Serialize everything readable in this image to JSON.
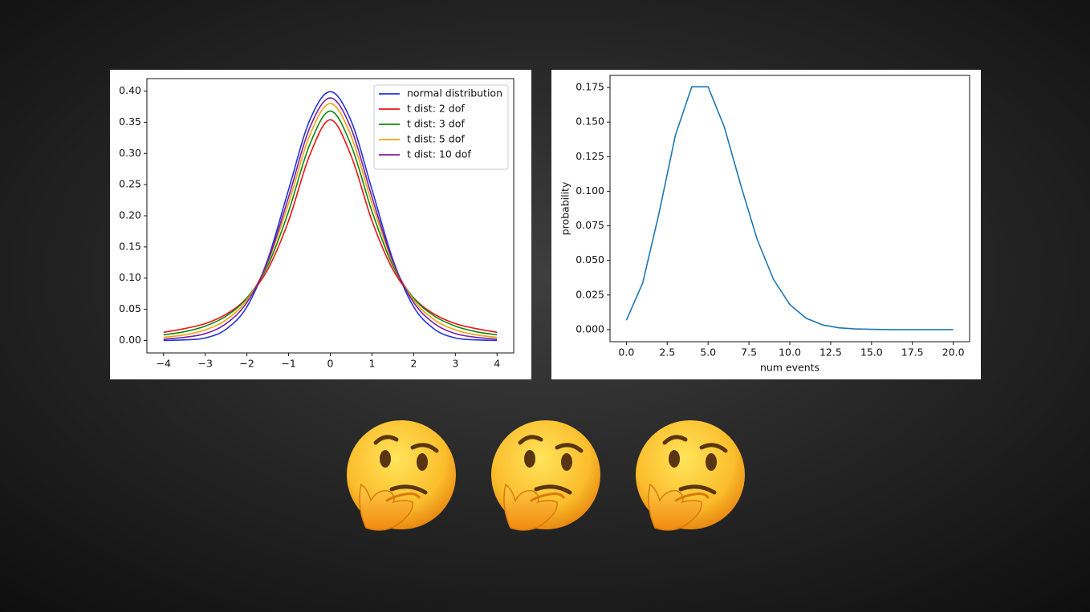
{
  "chart_data": [
    {
      "type": "line",
      "x": [
        -4,
        -3.5,
        -3,
        -2.5,
        -2,
        -1.5,
        -1,
        -0.5,
        0,
        0.5,
        1,
        1.5,
        2,
        2.5,
        3,
        3.5,
        4
      ],
      "series": [
        {
          "name": "normal distribution",
          "color": "#2233dd",
          "values": [
            0.0,
            0.001,
            0.004,
            0.018,
            0.054,
            0.13,
            0.242,
            0.352,
            0.399,
            0.352,
            0.242,
            0.13,
            0.054,
            0.018,
            0.004,
            0.001,
            0.0
          ]
        },
        {
          "name": "t dist: 2 dof",
          "color": "#ee1111",
          "values": [
            0.013,
            0.019,
            0.027,
            0.042,
            0.068,
            0.114,
            0.192,
            0.296,
            0.354,
            0.296,
            0.192,
            0.114,
            0.068,
            0.042,
            0.027,
            0.019,
            0.013
          ]
        },
        {
          "name": "t dist: 3 dof",
          "color": "#118811",
          "values": [
            0.009,
            0.014,
            0.023,
            0.039,
            0.068,
            0.12,
            0.207,
            0.313,
            0.368,
            0.313,
            0.207,
            0.12,
            0.068,
            0.039,
            0.023,
            0.014,
            0.009
          ]
        },
        {
          "name": "t dist: 5 dof",
          "color": "#f2a20c",
          "values": [
            0.005,
            0.009,
            0.017,
            0.033,
            0.065,
            0.125,
            0.22,
            0.328,
            0.38,
            0.328,
            0.22,
            0.125,
            0.065,
            0.033,
            0.017,
            0.009,
            0.005
          ]
        },
        {
          "name": "t dist: 10 dof",
          "color": "#7a1fa2",
          "values": [
            0.002,
            0.005,
            0.011,
            0.027,
            0.061,
            0.127,
            0.23,
            0.34,
            0.389,
            0.34,
            0.23,
            0.127,
            0.061,
            0.027,
            0.011,
            0.005,
            0.002
          ]
        }
      ],
      "xlim": [
        -4.4,
        4.4
      ],
      "xticks": [
        {
          "value": -4,
          "label": "−4"
        },
        {
          "value": -3,
          "label": "−3"
        },
        {
          "value": -2,
          "label": "−2"
        },
        {
          "value": -1,
          "label": "−1"
        },
        0,
        1,
        2,
        3,
        4
      ],
      "ylim": [
        -0.02,
        0.42
      ],
      "yticks": [
        {
          "value": 0,
          "label": "0.00"
        },
        {
          "value": 0.05,
          "label": "0.05"
        },
        {
          "value": 0.1,
          "label": "0.10"
        },
        {
          "value": 0.15,
          "label": "0.15"
        },
        {
          "value": 0.2,
          "label": "0.20"
        },
        {
          "value": 0.25,
          "label": "0.25"
        },
        {
          "value": 0.3,
          "label": "0.30"
        },
        {
          "value": 0.35,
          "label": "0.35"
        },
        {
          "value": 0.4,
          "label": "0.40"
        }
      ],
      "legend": "upper right"
    },
    {
      "type": "line",
      "x": [
        0,
        1,
        2,
        3,
        4,
        5,
        6,
        7,
        8,
        9,
        10,
        11,
        12,
        13,
        14,
        15,
        16,
        17,
        18,
        19,
        20
      ],
      "values": [
        0.0067,
        0.0337,
        0.0842,
        0.1404,
        0.1755,
        0.1755,
        0.1462,
        0.1044,
        0.0653,
        0.0363,
        0.0181,
        0.0082,
        0.0034,
        0.0013,
        0.0005,
        0.0002,
        0.0,
        0.0,
        0.0,
        0.0,
        0.0
      ],
      "color": "#1f77b4",
      "xlabel": "num events",
      "ylabel": "probability",
      "xlim": [
        -1,
        21
      ],
      "xticks": [
        {
          "value": 0,
          "label": "0.0"
        },
        2.5,
        {
          "value": 5,
          "label": "5.0"
        },
        7.5,
        {
          "value": 10,
          "label": "10.0"
        },
        12.5,
        {
          "value": 15,
          "label": "15.0"
        },
        17.5,
        {
          "value": 20,
          "label": "20.0"
        }
      ],
      "ylim": [
        -0.00875,
        0.18375
      ],
      "yticks": [
        {
          "value": 0,
          "label": "0.000"
        },
        0.025,
        {
          "value": 0.05,
          "label": "0.050"
        },
        0.075,
        {
          "value": 0.1,
          "label": "0.100"
        },
        0.125,
        {
          "value": 0.15,
          "label": "0.150"
        },
        0.175
      ]
    }
  ]
}
